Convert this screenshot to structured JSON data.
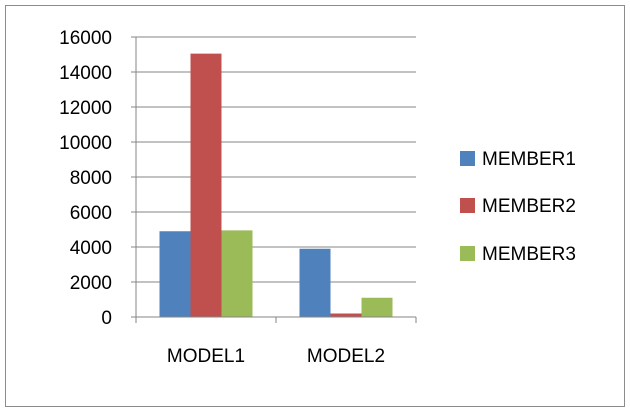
{
  "chart_data": {
    "type": "bar",
    "categories": [
      "MODEL1",
      "MODEL2"
    ],
    "series": [
      {
        "name": "MEMBER1",
        "values": [
          4900,
          3900
        ],
        "color": "#4f81bd"
      },
      {
        "name": "MEMBER2",
        "values": [
          15050,
          200
        ],
        "color": "#c0504d"
      },
      {
        "name": "MEMBER3",
        "values": [
          4950,
          1100
        ],
        "color": "#9bbb59"
      }
    ],
    "ylim": [
      0,
      16000
    ],
    "yticks": [
      0,
      2000,
      4000,
      6000,
      8000,
      10000,
      12000,
      14000,
      16000
    ],
    "grid": true,
    "legend_position": "right"
  }
}
